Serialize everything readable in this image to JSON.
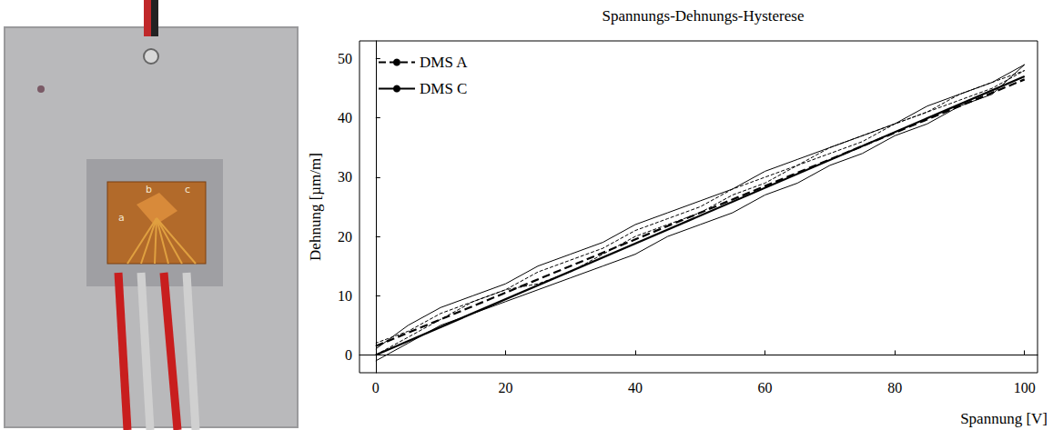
{
  "chart_data": {
    "type": "line",
    "title": "Spannungs-Dehnungs-Hysterese",
    "x_label": "Spannung [V]",
    "y_label": "Dehnung [µm/m]",
    "xlim": [
      -2.5,
      102
    ],
    "xticks": [
      0,
      20,
      40,
      60,
      80,
      100
    ],
    "ylim": [
      -3,
      53
    ],
    "yticks": [
      0,
      10,
      20,
      30,
      40,
      50
    ],
    "grid": false,
    "legend": "upper left",
    "series": [
      {
        "name": "DMS A",
        "color": "#000000",
        "line_style": "dashed",
        "x": [
          0,
          5,
          10,
          15,
          20,
          25,
          30,
          35,
          40,
          45,
          50,
          55,
          60,
          65,
          70,
          75,
          80,
          85,
          90,
          95,
          100,
          95,
          90,
          85,
          80,
          75,
          70,
          65,
          60,
          55,
          50,
          45,
          40,
          35,
          30,
          25,
          20,
          15,
          10,
          5,
          0
        ],
        "values": [
          0,
          3,
          6,
          9,
          11,
          12,
          14,
          17,
          20,
          22,
          24,
          27,
          29,
          32,
          34,
          36,
          39,
          41,
          43,
          45,
          48,
          46,
          44,
          41,
          39,
          37,
          35,
          32,
          30,
          28,
          25,
          23,
          21,
          18,
          16,
          14,
          11,
          9,
          7,
          4,
          2
        ],
        "fit": {
          "x": [
            0,
            100
          ],
          "values": [
            1.5,
            46.5
          ]
        }
      },
      {
        "name": "DMS C",
        "color": "#000000",
        "line_style": "solid",
        "x": [
          0,
          5,
          10,
          15,
          20,
          25,
          30,
          35,
          40,
          45,
          50,
          55,
          60,
          65,
          70,
          75,
          80,
          85,
          90,
          95,
          100,
          95,
          90,
          85,
          80,
          75,
          70,
          65,
          60,
          55,
          50,
          45,
          40,
          35,
          30,
          25,
          20,
          15,
          10,
          5,
          0
        ],
        "values": [
          -1,
          2,
          5,
          7,
          9,
          11,
          13,
          15,
          17,
          20,
          22,
          24,
          27,
          29,
          32,
          34,
          37,
          39,
          42,
          44,
          49,
          46,
          44,
          42,
          39,
          37,
          35,
          33,
          31,
          28,
          26,
          24,
          22,
          19,
          17,
          15,
          12,
          10,
          8,
          5,
          1
        ],
        "fit": {
          "x": [
            0,
            100
          ],
          "values": [
            0,
            47
          ]
        }
      }
    ]
  },
  "photo": {
    "labels": [
      "a",
      "b",
      "c"
    ]
  }
}
